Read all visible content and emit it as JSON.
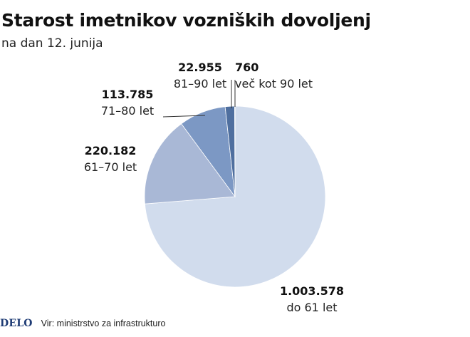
{
  "title": "Starost imetnikov vozniških dovoljenj",
  "subtitle": "na dan 12. junija",
  "footer": {
    "logo": "DELO",
    "source": "Vir: ministrstvo za infrastrukturo"
  },
  "chart_data": {
    "type": "pie",
    "start_angle_deg": 0,
    "direction": "clockwise",
    "slices": [
      {
        "value": 1003578,
        "value_label": "1.003.578",
        "label": "do 61 let",
        "color": "#d1dced"
      },
      {
        "value": 220182,
        "value_label": "220.182",
        "label": "61–70 let",
        "color": "#a9b8d6"
      },
      {
        "value": 113785,
        "value_label": "113.785",
        "label": "71–80 let",
        "color": "#7c98c4"
      },
      {
        "value": 22955,
        "value_label": "22.955",
        "label": "81–90 let",
        "color": "#4f6f9f"
      },
      {
        "value": 760,
        "value_label": "760",
        "label": "več kot 90 let",
        "color": "#e8474a"
      }
    ]
  }
}
